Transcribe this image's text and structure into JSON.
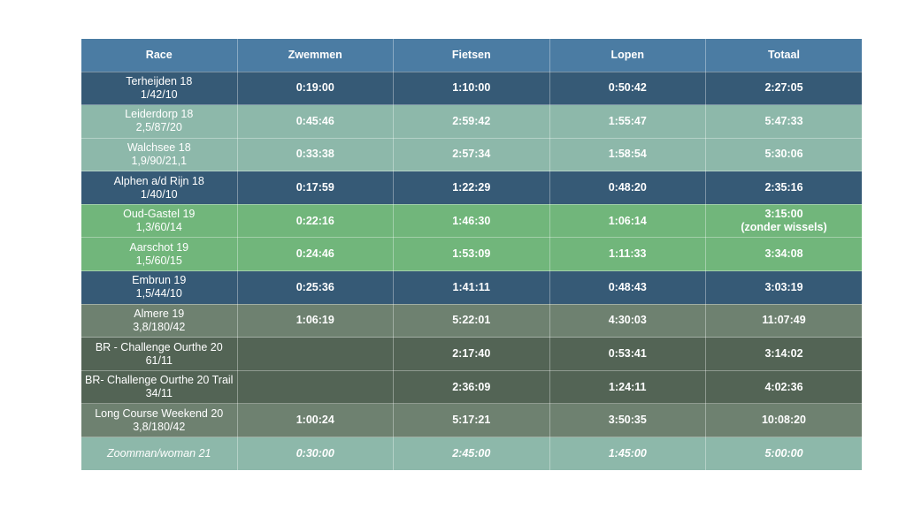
{
  "table": {
    "headers": [
      "Race",
      "Zwemmen",
      "Fietsen",
      "Lopen",
      "Totaal"
    ],
    "rows": [
      {
        "race": "Terheijden 18",
        "distance": "1/42/10",
        "swim": "0:19:00",
        "bike": "1:10:00",
        "run": "0:50:42",
        "total": "2:27:05",
        "total_note": "",
        "color": "#365a76"
      },
      {
        "race": "Leiderdorp 18",
        "distance": "2,5/87/20",
        "swim": "0:45:46",
        "bike": "2:59:42",
        "run": "1:55:47",
        "total": "5:47:33",
        "total_note": "",
        "color": "#8db8aa"
      },
      {
        "race": "Walchsee 18",
        "distance": "1,9/90/21,1",
        "swim": "0:33:38",
        "bike": "2:57:34",
        "run": "1:58:54",
        "total": "5:30:06",
        "total_note": "",
        "color": "#8db8aa"
      },
      {
        "race": "Alphen a/d Rijn 18",
        "distance": "1/40/10",
        "swim": "0:17:59",
        "bike": "1:22:29",
        "run": "0:48:20",
        "total": "2:35:16",
        "total_note": "",
        "color": "#365a76"
      },
      {
        "race": "Oud-Gastel 19",
        "distance": "1,3/60/14",
        "swim": "0:22:16",
        "bike": "1:46:30",
        "run": "1:06:14",
        "total": "3:15:00",
        "total_note": "(zonder wissels)",
        "color": "#71b67b"
      },
      {
        "race": "Aarschot 19",
        "distance": "1,5/60/15",
        "swim": "0:24:46",
        "bike": "1:53:09",
        "run": "1:11:33",
        "total": "3:34:08",
        "total_note": "",
        "color": "#71b67b"
      },
      {
        "race": "Embrun 19",
        "distance": "1,5/44/10",
        "swim": "0:25:36",
        "bike": "1:41:11",
        "run": "0:48:43",
        "total": "3:03:19",
        "total_note": "",
        "color": "#365a76"
      },
      {
        "race": "Almere 19",
        "distance": "3,8/180/42",
        "swim": "1:06:19",
        "bike": "5:22:01",
        "run": "4:30:03",
        "total": "11:07:49",
        "total_note": "",
        "color": "#6e8170"
      },
      {
        "race": "BR - Challenge Ourthe 20",
        "distance": "61/11",
        "swim": "",
        "bike": "2:17:40",
        "run": "0:53:41",
        "total": "3:14:02",
        "total_note": "",
        "color": "#536455"
      },
      {
        "race": "BR- Challenge Ourthe 20 Trail",
        "distance": "34/11",
        "swim": "",
        "bike": "2:36:09",
        "run": "1:24:11",
        "total": "4:02:36",
        "total_note": "",
        "color": "#536455"
      },
      {
        "race": "Long Course Weekend 20",
        "distance": "3,8/180/42",
        "swim": "1:00:24",
        "bike": "5:17:21",
        "run": "3:50:35",
        "total": "10:08:20",
        "total_note": "",
        "color": "#6e8170"
      },
      {
        "race": "Zoomman/woman 21",
        "distance": "",
        "swim": "0:30:00",
        "bike": "2:45:00",
        "run": "1:45:00",
        "total": "5:00:00",
        "total_note": "",
        "color": "#8db8aa",
        "italic": true
      }
    ]
  }
}
